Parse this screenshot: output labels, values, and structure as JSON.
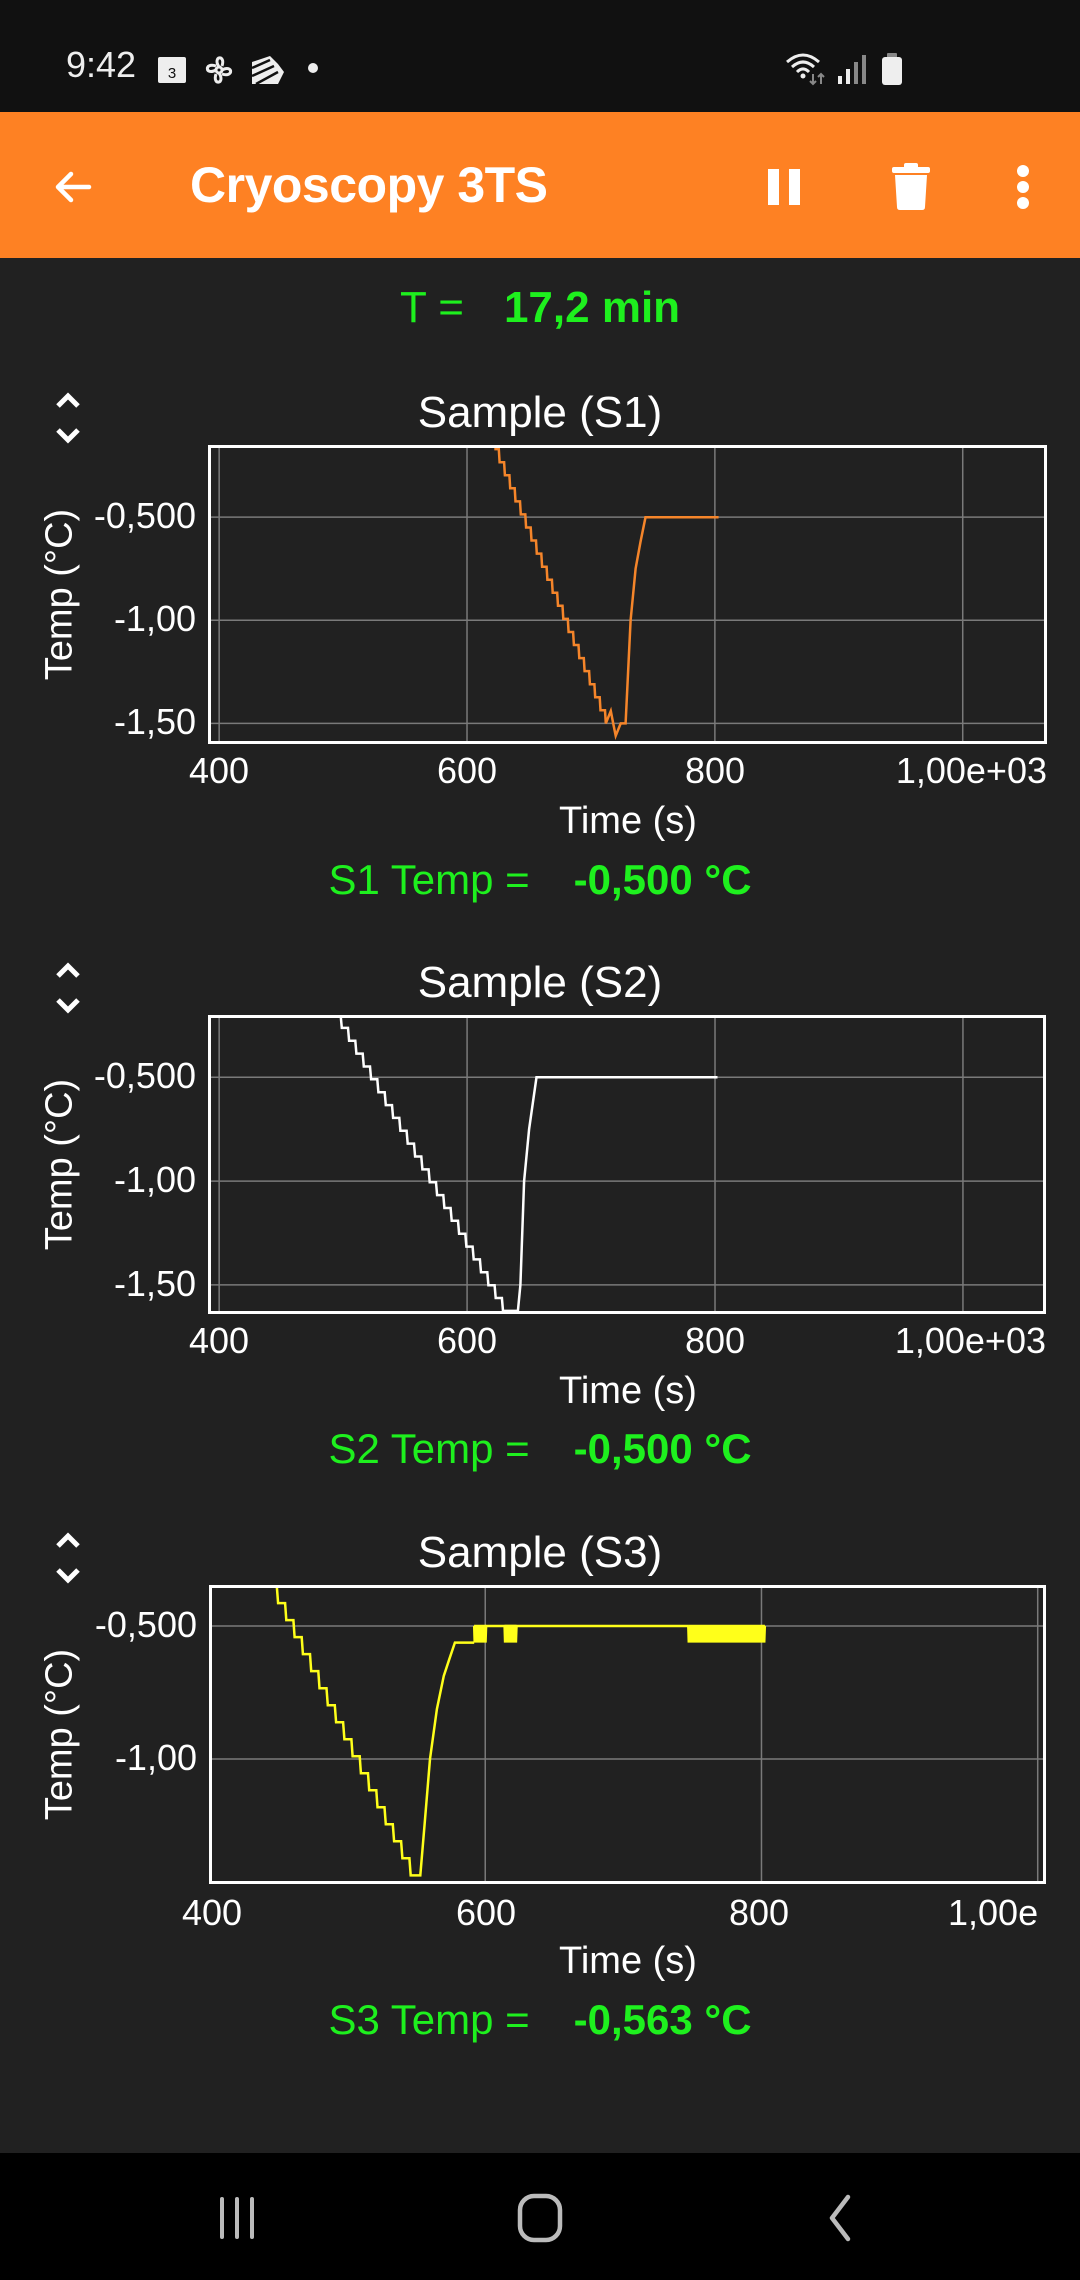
{
  "status_bar": {
    "time": "9:42",
    "left_icons": [
      "calendar-icon",
      "fan-icon",
      "app-icon",
      "dot-icon"
    ],
    "calendar_day": "3",
    "right_icons": [
      "wifi-icon",
      "signal-icon",
      "battery-icon"
    ]
  },
  "app_bar": {
    "title": "Cryoscopy 3TS",
    "back_icon": "arrow-back-icon",
    "actions": [
      "pause-icon",
      "delete-icon",
      "more-vert-icon"
    ],
    "color": "#FE8123"
  },
  "timer": {
    "label": "T =",
    "value": "17,2 min"
  },
  "colors": {
    "background": "#212121",
    "readout": "#1EF01E",
    "s1": "#F5852A",
    "s2": "#FFFFFF",
    "s3": "#FFFF1A",
    "grid": "#7A7A7A"
  },
  "charts": [
    {
      "id": "s1",
      "title": "Sample (S1)",
      "ylabel": "Temp (°C)",
      "xlabel": "Time (s)",
      "yticks": [
        "-0,500",
        "-1,00",
        "-1,50"
      ],
      "xticks": [
        "400",
        "600",
        "800",
        "1,00e+03"
      ],
      "readout_label": "S1 Temp =",
      "readout_value": "-0,500 °C"
    },
    {
      "id": "s2",
      "title": "Sample (S2)",
      "ylabel": "Temp (°C)",
      "xlabel": "Time (s)",
      "yticks": [
        "-0,500",
        "-1,00",
        "-1,50"
      ],
      "xticks": [
        "400",
        "600",
        "800",
        "1,00e+03"
      ],
      "readout_label": "S2 Temp =",
      "readout_value": "-0,500 °C"
    },
    {
      "id": "s3",
      "title": "Sample (S3)",
      "ylabel": "Temp (°C)",
      "xlabel": "Time (s)",
      "yticks": [
        "-0,500",
        "-1,00"
      ],
      "xticks": [
        "400",
        "600",
        "800",
        "1,00e"
      ],
      "readout_label": "S3 Temp =",
      "readout_value": "-0,563 °C"
    }
  ],
  "chart_data": [
    {
      "type": "line",
      "title": "Sample (S1)",
      "xlabel": "Time (s)",
      "ylabel": "Temp (°C)",
      "xlim": [
        391,
        1068
      ],
      "ylim": [
        -1.6,
        -0.15
      ],
      "xticks": [
        400,
        600,
        800,
        1000
      ],
      "yticks": [
        -0.5,
        -1.0,
        -1.5
      ],
      "grid": true,
      "color": "#F5852A",
      "step": 0.0625,
      "series": [
        {
          "name": "S1",
          "x": [
            622,
            712,
            716,
            718,
            720,
            724,
            728,
            732,
            736,
            740,
            744,
            803
          ],
          "y": [
            -0.17,
            -1.5,
            -1.44,
            -1.5,
            -1.56,
            -1.5,
            -1.5,
            -1.0,
            -0.75,
            -0.62,
            -0.5,
            -0.5
          ]
        }
      ]
    },
    {
      "type": "line",
      "title": "Sample (S2)",
      "xlabel": "Time (s)",
      "ylabel": "Temp (°C)",
      "xlim": [
        391,
        1067
      ],
      "ylim": [
        -1.64,
        -0.2
      ],
      "xticks": [
        400,
        600,
        800,
        1000
      ],
      "yticks": [
        -0.5,
        -1.0,
        -1.5
      ],
      "grid": true,
      "color": "#FFFFFF",
      "step": 0.0625,
      "series": [
        {
          "name": "S2",
          "x": [
            493,
            629,
            641,
            643,
            646,
            650,
            653,
            656,
            802
          ],
          "y": [
            -0.2,
            -1.625,
            -1.625,
            -1.5,
            -1.0,
            -0.75,
            -0.625,
            -0.5,
            -0.5
          ]
        }
      ]
    },
    {
      "type": "line",
      "title": "Sample (S3)",
      "xlabel": "Time (s)",
      "ylabel": "Temp (°C)",
      "xlim": [
        400,
        1006
      ],
      "ylim": [
        -1.47,
        -0.346
      ],
      "xticks": [
        400,
        600,
        800,
        1000
      ],
      "yticks": [
        -0.5,
        -1.0
      ],
      "grid": true,
      "color": "#FFFF1A",
      "step": 0.0625,
      "series": [
        {
          "name": "S3",
          "x": [
            444,
            546,
            553,
            556,
            560,
            565,
            570,
            574,
            578,
            592,
            747,
            802
          ],
          "y": [
            -0.35,
            -1.4375,
            -1.4375,
            -1.25,
            -1.0,
            -0.8125,
            -0.6875,
            -0.625,
            -0.5625,
            -0.5625,
            -0.5,
            -0.5625
          ]
        }
      ],
      "noise_ranges": [
        [
          592,
          600
        ],
        [
          614,
          622
        ],
        [
          747,
          802
        ]
      ]
    }
  ],
  "nav_bar": {
    "buttons": [
      "recents-icon",
      "home-icon",
      "back-icon"
    ]
  }
}
